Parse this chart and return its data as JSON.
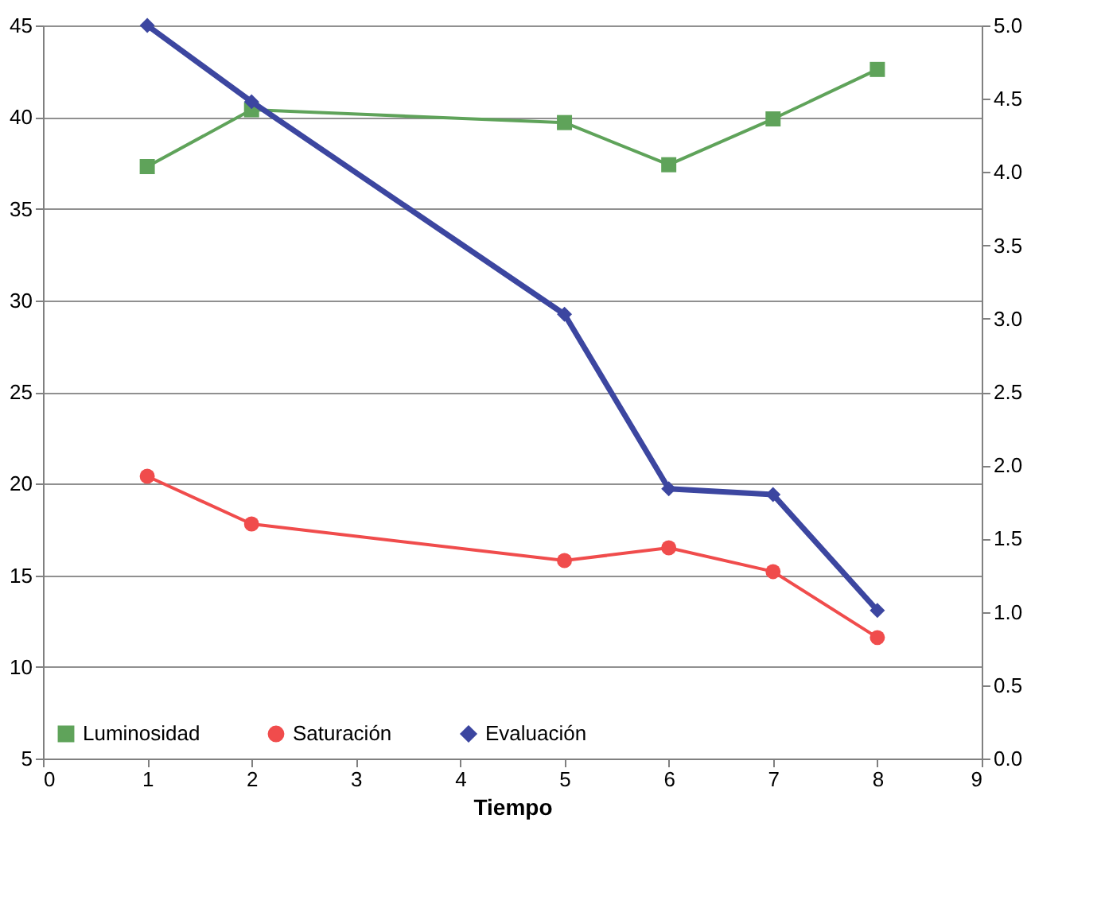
{
  "chart_data": {
    "type": "line",
    "xlabel": "Tiempo",
    "x": [
      1,
      2,
      5,
      6,
      7,
      8
    ],
    "series": [
      {
        "name": "Luminosidad",
        "color": "#5fa35a",
        "marker": "square",
        "values": [
          37.3,
          40.4,
          39.7,
          37.4,
          39.9,
          42.6
        ]
      },
      {
        "name": "Saturación",
        "color": "#f04c4c",
        "marker": "circle",
        "values": [
          20.4,
          17.8,
          15.8,
          16.5,
          15.2,
          11.6
        ]
      },
      {
        "name": "Evaluación",
        "color": "#3c46a0",
        "marker": "diamond",
        "axis": "y2",
        "values": [
          5.0,
          4.48,
          3.03,
          1.84,
          1.8,
          1.01
        ]
      }
    ],
    "xlim": [
      0,
      9
    ],
    "xticks": [
      0,
      1,
      2,
      3,
      4,
      5,
      6,
      7,
      8,
      9
    ],
    "ylim": [
      5,
      45
    ],
    "yticks": [
      5,
      10,
      15,
      20,
      25,
      30,
      35,
      40,
      45
    ],
    "y2lim": [
      0,
      5
    ],
    "y2ticks": [
      {
        "value": 0,
        "label": "0.0"
      },
      0.5,
      {
        "value": 1,
        "label": "1.0"
      },
      1.5,
      {
        "value": 2,
        "label": "2.0"
      },
      2.5,
      {
        "value": 3,
        "label": "3.0"
      },
      3.5,
      {
        "value": 4,
        "label": "4.0"
      },
      4.5,
      {
        "value": 5,
        "label": "5.0"
      }
    ],
    "grid": "y",
    "legend": "bottom left",
    "line_style": "solid"
  }
}
